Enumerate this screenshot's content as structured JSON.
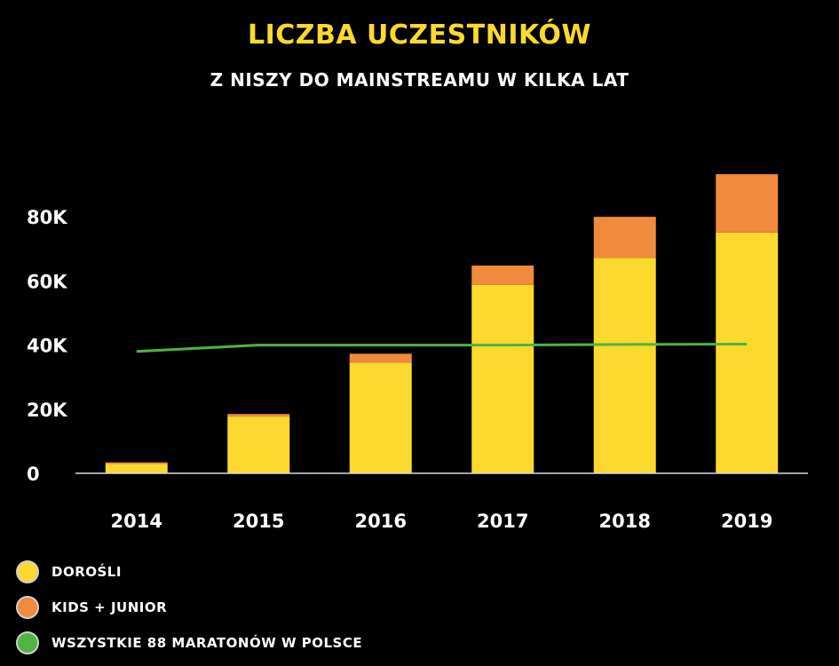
{
  "colors": {
    "adults": "#fbd92e",
    "kids": "#f08a3c",
    "line": "#4fb442",
    "title": "#fbd92e",
    "axis": "#d9d9d9"
  },
  "chart_data": {
    "type": "bar",
    "title": "LICZBA UCZESTNIKÓW",
    "subtitle": "Z NISZY DO MAINSTREAMU W KILKA LAT",
    "categories": [
      "2014",
      "2015",
      "2016",
      "2017",
      "2018",
      "2019"
    ],
    "y_ticks": [
      0,
      20000,
      40000,
      60000,
      80000
    ],
    "y_tick_labels": [
      "0",
      "20K",
      "40K",
      "60K",
      "80K"
    ],
    "ylim": [
      0,
      95000
    ],
    "stacked": true,
    "series": [
      {
        "name": "DOROŚLI",
        "kind": "bar",
        "color": "#fbd92e",
        "values": [
          3000,
          17700,
          34500,
          58800,
          67200,
          75100
        ]
      },
      {
        "name": "KIDS + JUNIOR",
        "kind": "bar",
        "color": "#f08a3c",
        "values": [
          400,
          800,
          2800,
          6000,
          12800,
          18200
        ]
      },
      {
        "name": "WSZYSTKIE 88 MARATONÓW W POLSCE",
        "kind": "line",
        "color": "#4fb442",
        "values": [
          38000,
          40000,
          40000,
          40000,
          40200,
          40300
        ]
      }
    ],
    "grid": false,
    "legend_position": "bottom-left"
  }
}
